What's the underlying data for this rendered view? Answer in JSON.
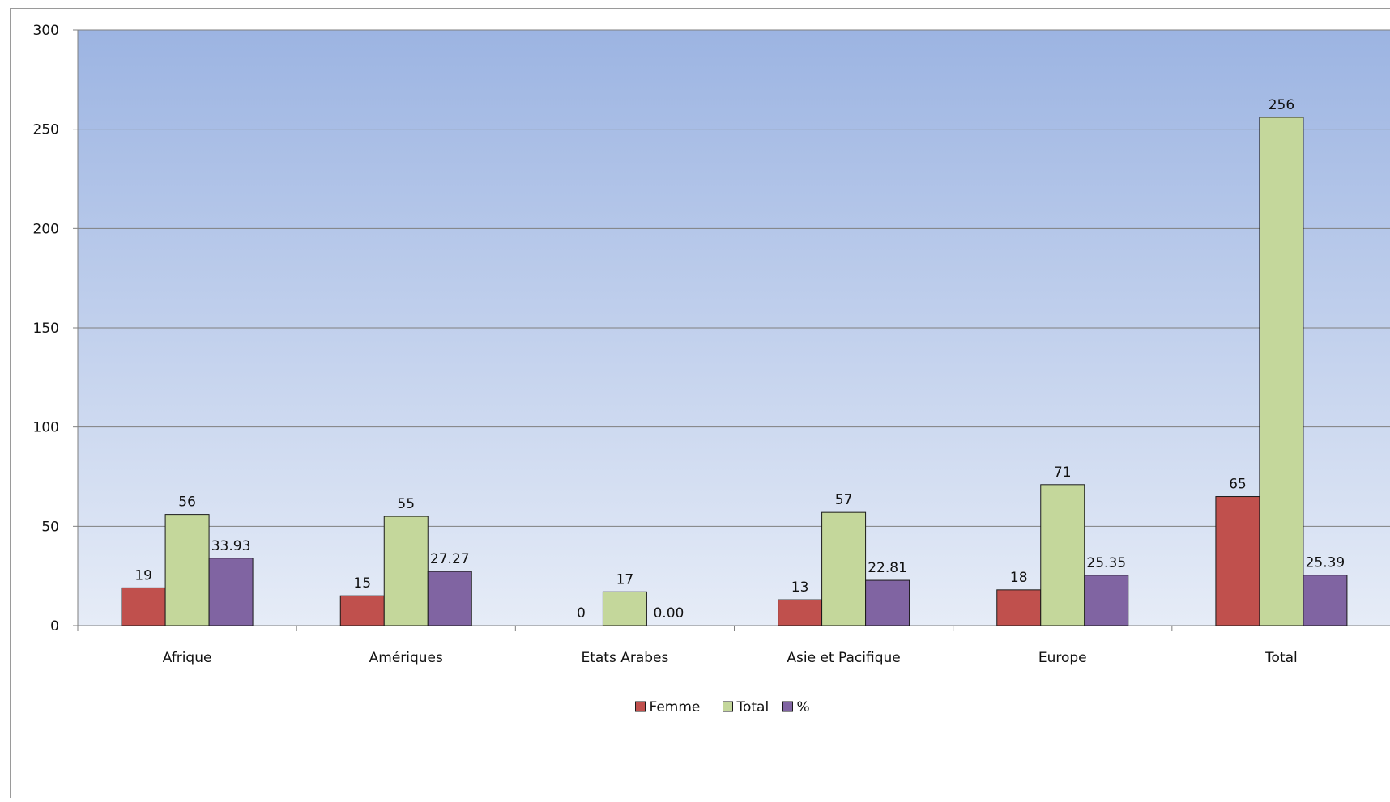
{
  "chart_data": {
    "type": "bar",
    "categories": [
      "Afrique",
      "Amériques",
      "Etats Arabes",
      "Asie et Pacifique",
      "Europe",
      "Total"
    ],
    "series": [
      {
        "name": "Femme",
        "values": [
          19,
          15,
          0,
          13,
          18,
          65
        ],
        "labels": [
          "19",
          "15",
          "0",
          "13",
          "18",
          "65"
        ],
        "color": "#c0504d"
      },
      {
        "name": "Total",
        "values": [
          56,
          55,
          17,
          57,
          71,
          256
        ],
        "labels": [
          "56",
          "55",
          "17",
          "57",
          "71",
          "256"
        ],
        "color": "#c4d79b"
      },
      {
        "name": "%",
        "values": [
          33.93,
          27.27,
          0.0,
          22.81,
          25.35,
          25.39
        ],
        "labels": [
          "33.93",
          "27.27",
          "0.00",
          "22.81",
          "25.35",
          "25.39"
        ],
        "color": "#8064a2"
      }
    ],
    "ylim": [
      0,
      300
    ],
    "yticks": [
      0,
      50,
      100,
      150,
      200,
      250,
      300
    ],
    "grid": true,
    "legend_position": "bottom",
    "plot_background": {
      "top": "#9cb4e2",
      "bottom": "#e6ecf7"
    }
  }
}
